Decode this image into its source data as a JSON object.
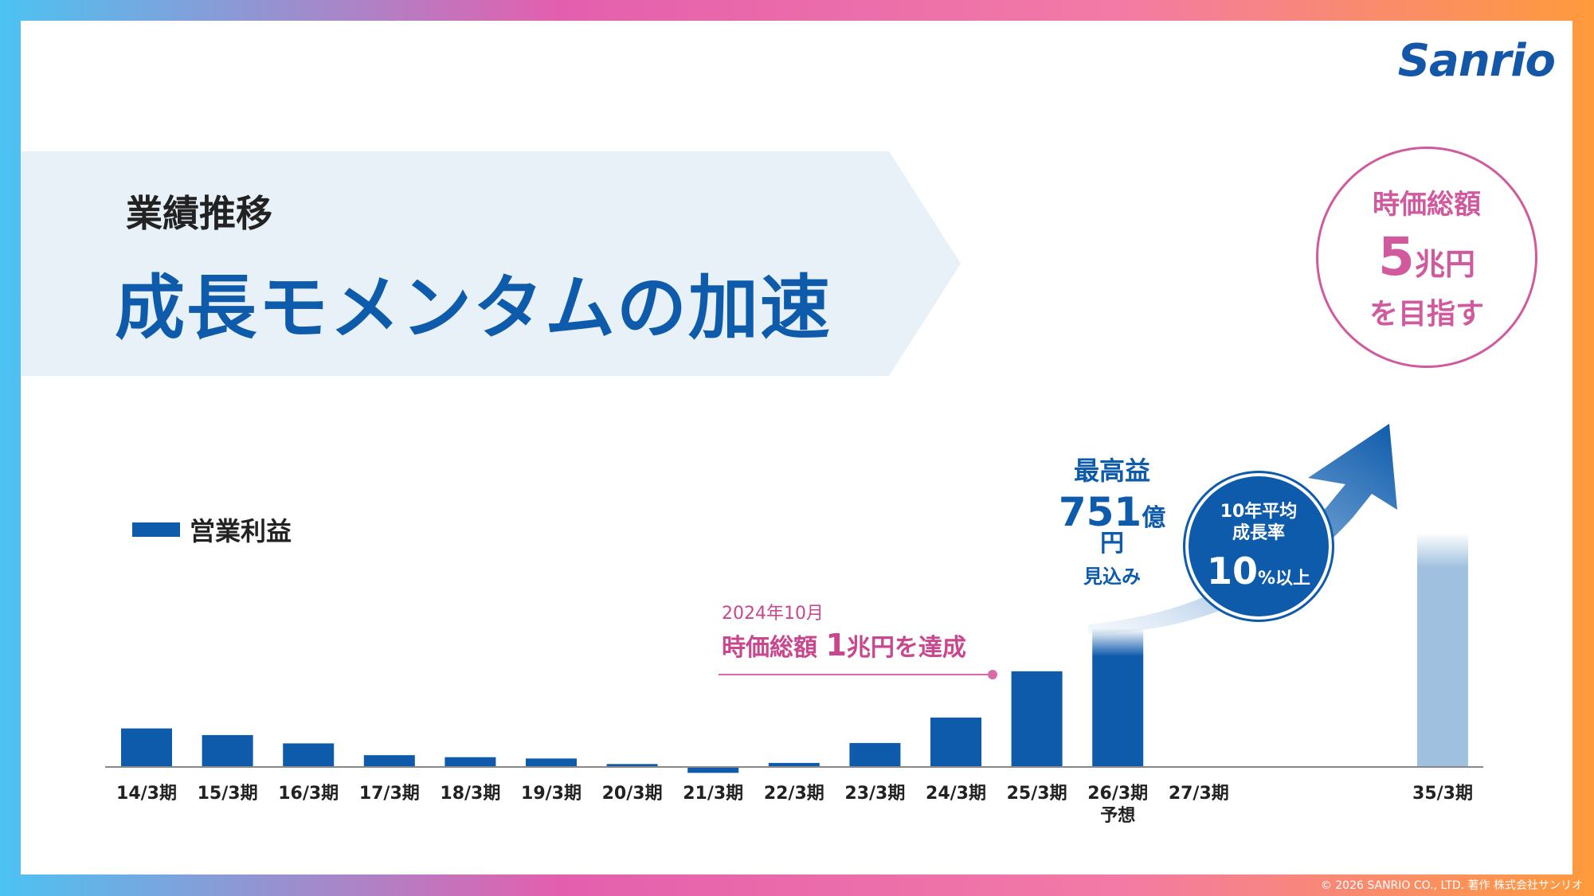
{
  "brand": {
    "logo_text": "Sanrio",
    "primary_color": "#0e5bab",
    "accent_color": "#d15a9f"
  },
  "header": {
    "subtitle": "業績推移",
    "title": "成長モメンタムの加速"
  },
  "target": {
    "line1": "時価総額",
    "value": "5",
    "unit": "兆円",
    "line3": "を目指す"
  },
  "legend": {
    "label": "営業利益"
  },
  "annotations": {
    "record": {
      "line1": "最高益",
      "value": "751",
      "unit": "億円",
      "line3": "見込み"
    },
    "milestone": {
      "date": "2024年10月",
      "prefix": "時価総額 ",
      "value": "1",
      "suffix": "兆円を達成"
    },
    "growth": {
      "line1a": "10年平均",
      "line1b": "成長率",
      "value": "10",
      "unit": "%以上"
    }
  },
  "chart_data": {
    "type": "bar",
    "categories": [
      "14/3期",
      "15/3期",
      "16/3期",
      "17/3期",
      "18/3期",
      "19/3期",
      "20/3期",
      "21/3期",
      "22/3期",
      "23/3期",
      "24/3期",
      "25/3期",
      "26/3期",
      "27/3期",
      "35/3期"
    ],
    "sublabels": {
      "26/3期": "予想"
    },
    "series": [
      {
        "name": "営業利益",
        "values": [
          209,
          173,
          128,
          64,
          53,
          46,
          16,
          -32,
          22,
          130,
          268,
          519,
          751,
          null,
          null
        ]
      }
    ],
    "forecast_categories": [
      "26/3期"
    ],
    "target_categories": [
      "35/3期"
    ],
    "ylim": [
      -40,
      1270
    ]
  },
  "footer": {
    "copyright": "© 2026 SANRIO CO., LTD. 著作 株式会社サンリオ"
  }
}
